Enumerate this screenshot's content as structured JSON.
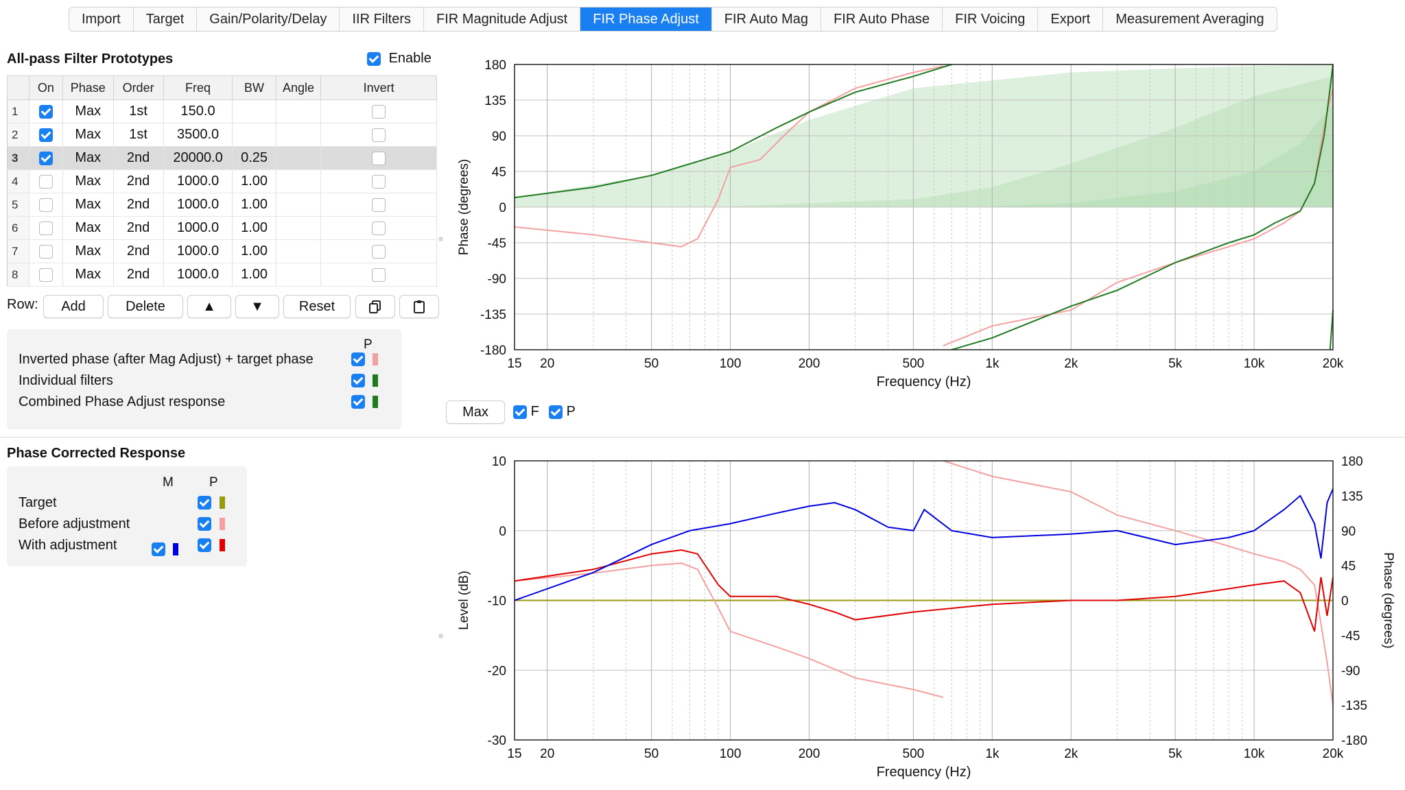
{
  "tabs": [
    "Import",
    "Target",
    "Gain/Polarity/Delay",
    "IIR Filters",
    "FIR Magnitude Adjust",
    "FIR Phase Adjust",
    "FIR Auto Mag",
    "FIR Auto Phase",
    "FIR Voicing",
    "Export",
    "Measurement Averaging"
  ],
  "active_tab": "FIR Phase Adjust",
  "allpass": {
    "title": "All-pass Filter Prototypes",
    "enable_label": "Enable",
    "enabled": true,
    "columns": [
      "On",
      "Phase",
      "Order",
      "Freq",
      "BW",
      "Angle",
      "Invert"
    ],
    "rows": [
      {
        "idx": "1",
        "on": true,
        "phase": "Max",
        "order": "1st",
        "freq": "150.0",
        "bw": "",
        "angle": "",
        "invert": false
      },
      {
        "idx": "2",
        "on": true,
        "phase": "Max",
        "order": "1st",
        "freq": "3500.0",
        "bw": "",
        "angle": "",
        "invert": false
      },
      {
        "idx": "3",
        "on": true,
        "phase": "Max",
        "order": "2nd",
        "freq": "20000.0",
        "bw": "0.25",
        "angle": "",
        "invert": false
      },
      {
        "idx": "4",
        "on": false,
        "phase": "Max",
        "order": "2nd",
        "freq": "1000.0",
        "bw": "1.00",
        "angle": "",
        "invert": false
      },
      {
        "idx": "5",
        "on": false,
        "phase": "Max",
        "order": "2nd",
        "freq": "1000.0",
        "bw": "1.00",
        "angle": "",
        "invert": false
      },
      {
        "idx": "6",
        "on": false,
        "phase": "Max",
        "order": "2nd",
        "freq": "1000.0",
        "bw": "1.00",
        "angle": "",
        "invert": false
      },
      {
        "idx": "7",
        "on": false,
        "phase": "Max",
        "order": "2nd",
        "freq": "1000.0",
        "bw": "1.00",
        "angle": "",
        "invert": false
      },
      {
        "idx": "8",
        "on": false,
        "phase": "Max",
        "order": "2nd",
        "freq": "1000.0",
        "bw": "1.00",
        "angle": "",
        "invert": false
      }
    ],
    "selected_row": "3"
  },
  "row_controls": {
    "label": "Row:",
    "add": "Add",
    "delete": "Delete",
    "up": "▲",
    "down": "▼",
    "reset": "Reset"
  },
  "legend_top": {
    "col_header": "P",
    "items": [
      {
        "label": "Inverted phase (after Mag Adjust) + target phase",
        "checked": true,
        "color": "#f4a0a0"
      },
      {
        "label": "Individual filters",
        "checked": true,
        "color": "#1f7a1f"
      },
      {
        "label": "Combined Phase Adjust response",
        "checked": true,
        "color": "#1f7a1f"
      }
    ]
  },
  "phase_corrected": {
    "title": "Phase Corrected Response",
    "col_m": "M",
    "col_p": "P",
    "items": [
      {
        "label": "Target",
        "m": null,
        "p": true,
        "color": "#9a9a10"
      },
      {
        "label": "Before adjustment",
        "m": null,
        "p": true,
        "color": "#f4a0a0"
      },
      {
        "label": "With adjustment",
        "m": true,
        "p": true,
        "color": "#e00000",
        "m_color": "#0000e0"
      }
    ]
  },
  "chart_controls": {
    "max_button": "Max",
    "f_label": "F",
    "p_label": "P",
    "f_checked": true,
    "p_checked": true
  },
  "chart_data": [
    {
      "type": "line",
      "title": "",
      "xlabel": "Frequency (Hz)",
      "ylabel": "Phase (degrees)",
      "x_scale": "log",
      "xlim": [
        15,
        20000
      ],
      "ylim": [
        -180,
        180
      ],
      "x_ticks": [
        "15",
        "20",
        "50",
        "100",
        "200",
        "500",
        "1k",
        "2k",
        "5k",
        "10k",
        "20k"
      ],
      "y_ticks": [
        "180",
        "135",
        "90",
        "45",
        "0",
        "-45",
        "-90",
        "-135",
        "-180"
      ],
      "grid": true,
      "series": [
        {
          "id": "inverted_target",
          "color": "#f4a0a0",
          "x": [
            15,
            30,
            50,
            65,
            75,
            90,
            100,
            130,
            160,
            200,
            300,
            500,
            650
          ],
          "y": [
            -25,
            -35,
            -45,
            -50,
            -40,
            10,
            50,
            60,
            90,
            120,
            150,
            170,
            178
          ]
        },
        {
          "id": "inverted_target_b",
          "color": "#f4a0a0",
          "x": [
            650,
            1000,
            2000,
            3000,
            5000,
            8000,
            10000,
            13000,
            15000,
            17000,
            18000,
            19000,
            20000
          ],
          "y": [
            -175,
            -150,
            -130,
            -95,
            -70,
            -50,
            -40,
            -20,
            -5,
            30,
            80,
            120,
            150
          ]
        },
        {
          "id": "combined",
          "color": "#1f7a1f",
          "x": [
            15,
            30,
            50,
            100,
            150,
            200,
            300,
            500,
            700
          ],
          "y": [
            12,
            25,
            40,
            70,
            100,
            120,
            145,
            165,
            180
          ]
        },
        {
          "id": "combined_b",
          "color": "#1f7a1f",
          "x": [
            700,
            1000,
            2000,
            3000,
            5000,
            8000,
            10000,
            12000,
            15000,
            17000,
            18500,
            19500,
            20000
          ],
          "y": [
            -180,
            -165,
            -125,
            -105,
            -70,
            -45,
            -35,
            -20,
            -5,
            30,
            90,
            150,
            180
          ]
        },
        {
          "id": "combined_c",
          "color": "#1f7a1f",
          "x": [
            19500,
            20000
          ],
          "y": [
            -180,
            -130
          ]
        }
      ],
      "fills": [
        {
          "color": "#9fd49f",
          "opacity": 0.35,
          "x": [
            15,
            50,
            100,
            200,
            500,
            1000,
            2000,
            5000,
            10000,
            20000
          ],
          "y": [
            12,
            40,
            70,
            110,
            150,
            160,
            170,
            175,
            178,
            180
          ]
        },
        {
          "color": "#9fd49f",
          "opacity": 0.3,
          "x": [
            100,
            500,
            1000,
            2000,
            5000,
            10000,
            20000
          ],
          "y": [
            1,
            10,
            25,
            55,
            100,
            140,
            165
          ]
        },
        {
          "color": "#9fd49f",
          "opacity": 0.3,
          "x": [
            1000,
            2000,
            5000,
            10000,
            15000,
            20000
          ],
          "y": [
            1,
            5,
            20,
            45,
            80,
            130
          ]
        }
      ]
    },
    {
      "type": "line",
      "title": "",
      "xlabel": "Frequency (Hz)",
      "ylabel": "Level (dB)",
      "y2label": "Phase (degrees)",
      "x_scale": "log",
      "xlim": [
        15,
        20000
      ],
      "ylim": [
        -30,
        10
      ],
      "y2lim": [
        -180,
        180
      ],
      "x_ticks": [
        "15",
        "20",
        "50",
        "100",
        "200",
        "500",
        "1k",
        "2k",
        "5k",
        "10k",
        "20k"
      ],
      "y_ticks": [
        "10",
        "0",
        "-10",
        "-20",
        "-30"
      ],
      "y2_ticks": [
        "180",
        "135",
        "90",
        "45",
        "0",
        "-45",
        "-90",
        "-135",
        "-180"
      ],
      "grid": true,
      "series": [
        {
          "id": "target",
          "axis": "y2",
          "color": "#9a9a10",
          "x": [
            15,
            20000
          ],
          "y": [
            0,
            0
          ]
        },
        {
          "id": "before_phase",
          "axis": "y2",
          "color": "#f4a0a0",
          "x": [
            15,
            30,
            50,
            65,
            75,
            90,
            100,
            150,
            200,
            300,
            500,
            650
          ],
          "y": [
            25,
            35,
            45,
            48,
            40,
            -10,
            -40,
            -60,
            -75,
            -100,
            -115,
            -125
          ]
        },
        {
          "id": "before_phase_b",
          "axis": "y2",
          "color": "#f4a0a0",
          "x": [
            650,
            1000,
            2000,
            3000,
            5000,
            8000,
            10000,
            13000,
            15000,
            17000,
            18000,
            19000,
            20000
          ],
          "y": [
            180,
            160,
            140,
            110,
            90,
            70,
            60,
            50,
            40,
            20,
            -30,
            -80,
            -135
          ]
        },
        {
          "id": "with_phase",
          "axis": "y2",
          "color": "#e00000",
          "x": [
            15,
            30,
            50,
            65,
            75,
            90,
            100,
            150,
            200,
            250,
            300,
            500,
            1000,
            2000,
            3000,
            5000,
            8000,
            10000,
            13000,
            15000,
            17000,
            18000,
            19000,
            20000
          ],
          "y": [
            25,
            40,
            60,
            65,
            60,
            20,
            5,
            5,
            -5,
            -15,
            -25,
            -15,
            -5,
            0,
            0,
            5,
            15,
            20,
            25,
            10,
            -40,
            30,
            -20,
            30
          ]
        },
        {
          "id": "with_level",
          "axis": "y",
          "color": "#0000e0",
          "x": [
            15,
            30,
            50,
            70,
            100,
            150,
            200,
            250,
            300,
            400,
            500,
            550,
            700,
            1000,
            2000,
            3000,
            5000,
            8000,
            10000,
            13000,
            15000,
            17000,
            18000,
            19000,
            20000
          ],
          "y": [
            -10,
            -6,
            -2,
            0,
            1,
            2.5,
            3.5,
            4,
            3,
            0.5,
            0,
            3,
            0,
            -1,
            -0.5,
            0,
            -2,
            -1,
            0,
            3,
            5,
            1,
            -4,
            4,
            6
          ]
        }
      ]
    }
  ]
}
